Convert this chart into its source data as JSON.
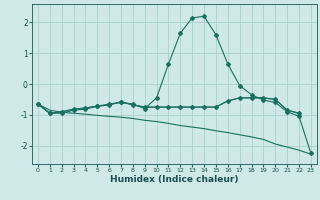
{
  "xlabel": "Humidex (Indice chaleur)",
  "background_color": "#cfe8e8",
  "grid_color": "#aacfcf",
  "line_color": "#1a7060",
  "x_values": [
    0,
    1,
    2,
    3,
    4,
    5,
    6,
    7,
    8,
    9,
    10,
    11,
    12,
    13,
    14,
    15,
    16,
    17,
    18,
    19,
    20,
    21,
    22,
    23
  ],
  "series": [
    {
      "y": [
        -0.65,
        -0.95,
        -0.95,
        -0.85,
        -0.82,
        -0.72,
        -0.65,
        -0.6,
        -0.65,
        -0.8,
        -0.45,
        0.65,
        1.65,
        2.15,
        2.2,
        1.6,
        0.65,
        -0.05,
        -0.35,
        -0.52,
        -0.6,
        -0.9,
        -1.05,
        -2.25
      ],
      "marker": true
    },
    {
      "y": [
        -0.65,
        -0.95,
        -0.9,
        -0.82,
        -0.78,
        -0.72,
        -0.68,
        -0.58,
        -0.68,
        -0.75,
        -0.75,
        -0.75,
        -0.75,
        -0.75,
        -0.75,
        -0.75,
        -0.55,
        -0.45,
        -0.45,
        -0.45,
        -0.5,
        -0.85,
        -0.95,
        null
      ],
      "marker": true
    },
    {
      "y": [
        -0.65,
        -0.95,
        -0.9,
        -0.82,
        -0.78,
        -0.72,
        -0.68,
        -0.58,
        -0.68,
        -0.75,
        -0.75,
        -0.75,
        -0.75,
        -0.75,
        -0.75,
        -0.75,
        -0.55,
        -0.45,
        -0.45,
        -0.45,
        -0.5,
        -0.85,
        -0.95,
        null
      ],
      "marker": false
    },
    {
      "y": [
        -0.65,
        -0.85,
        -0.92,
        -0.95,
        -0.98,
        -1.02,
        -1.05,
        -1.08,
        -1.12,
        -1.18,
        -1.22,
        -1.28,
        -1.35,
        -1.4,
        -1.45,
        -1.52,
        -1.58,
        -1.65,
        -1.72,
        -1.8,
        -1.95,
        -2.05,
        -2.15,
        -2.28
      ],
      "marker": false
    }
  ],
  "ylim": [
    -2.6,
    2.6
  ],
  "xlim": [
    -0.5,
    23.5
  ],
  "yticks": [
    -2,
    -1,
    0,
    1,
    2
  ],
  "xticks": [
    0,
    1,
    2,
    3,
    4,
    5,
    6,
    7,
    8,
    9,
    10,
    11,
    12,
    13,
    14,
    15,
    16,
    17,
    18,
    19,
    20,
    21,
    22,
    23
  ]
}
